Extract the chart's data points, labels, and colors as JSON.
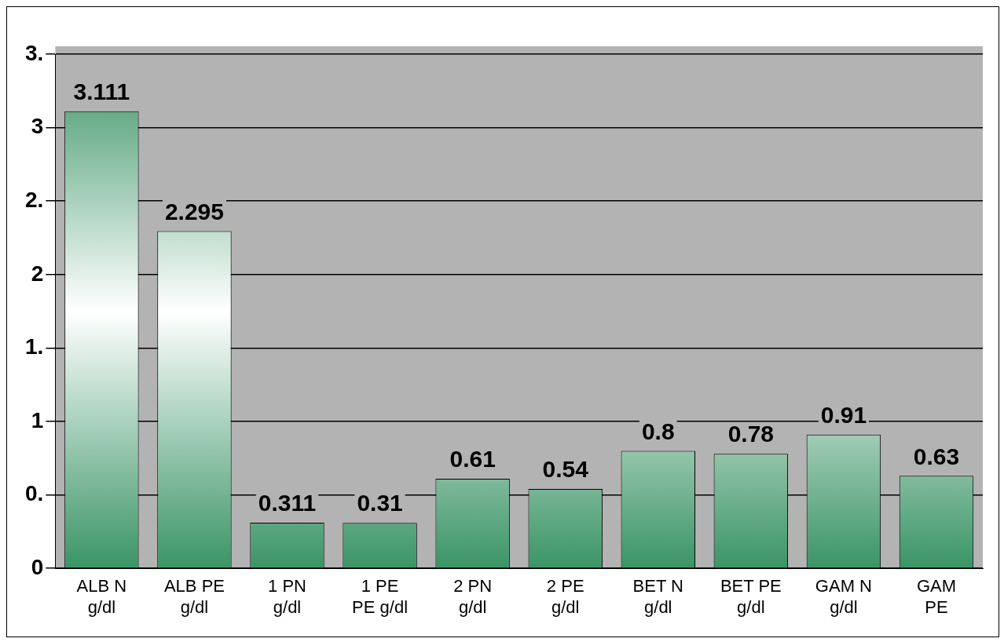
{
  "chart_data": {
    "type": "bar",
    "categories": [
      "ALB N g/dl",
      "ALB PE g/dl",
      "1 PN g/dl",
      "1 PE PE g/dl",
      "2 PN g/dl",
      "2 PE g/dl",
      "BET N g/dl",
      "BET PE g/dl",
      "GAM N g/dl",
      "GAM PE"
    ],
    "values": [
      3.111,
      2.295,
      0.311,
      0.31,
      0.61,
      0.54,
      0.8,
      0.78,
      0.91,
      0.63
    ],
    "color": "#3a9466",
    "data_labels": true,
    "ylim": [
      0,
      3.5
    ],
    "yticks": [
      0,
      {
        "value": 0.5,
        "label": "0."
      },
      1,
      {
        "value": 1.5,
        "label": "1."
      },
      2,
      {
        "value": 2.5,
        "label": "2."
      },
      3,
      {
        "value": 3.5,
        "label": "3."
      }
    ],
    "grid": "y",
    "legend": false
  }
}
